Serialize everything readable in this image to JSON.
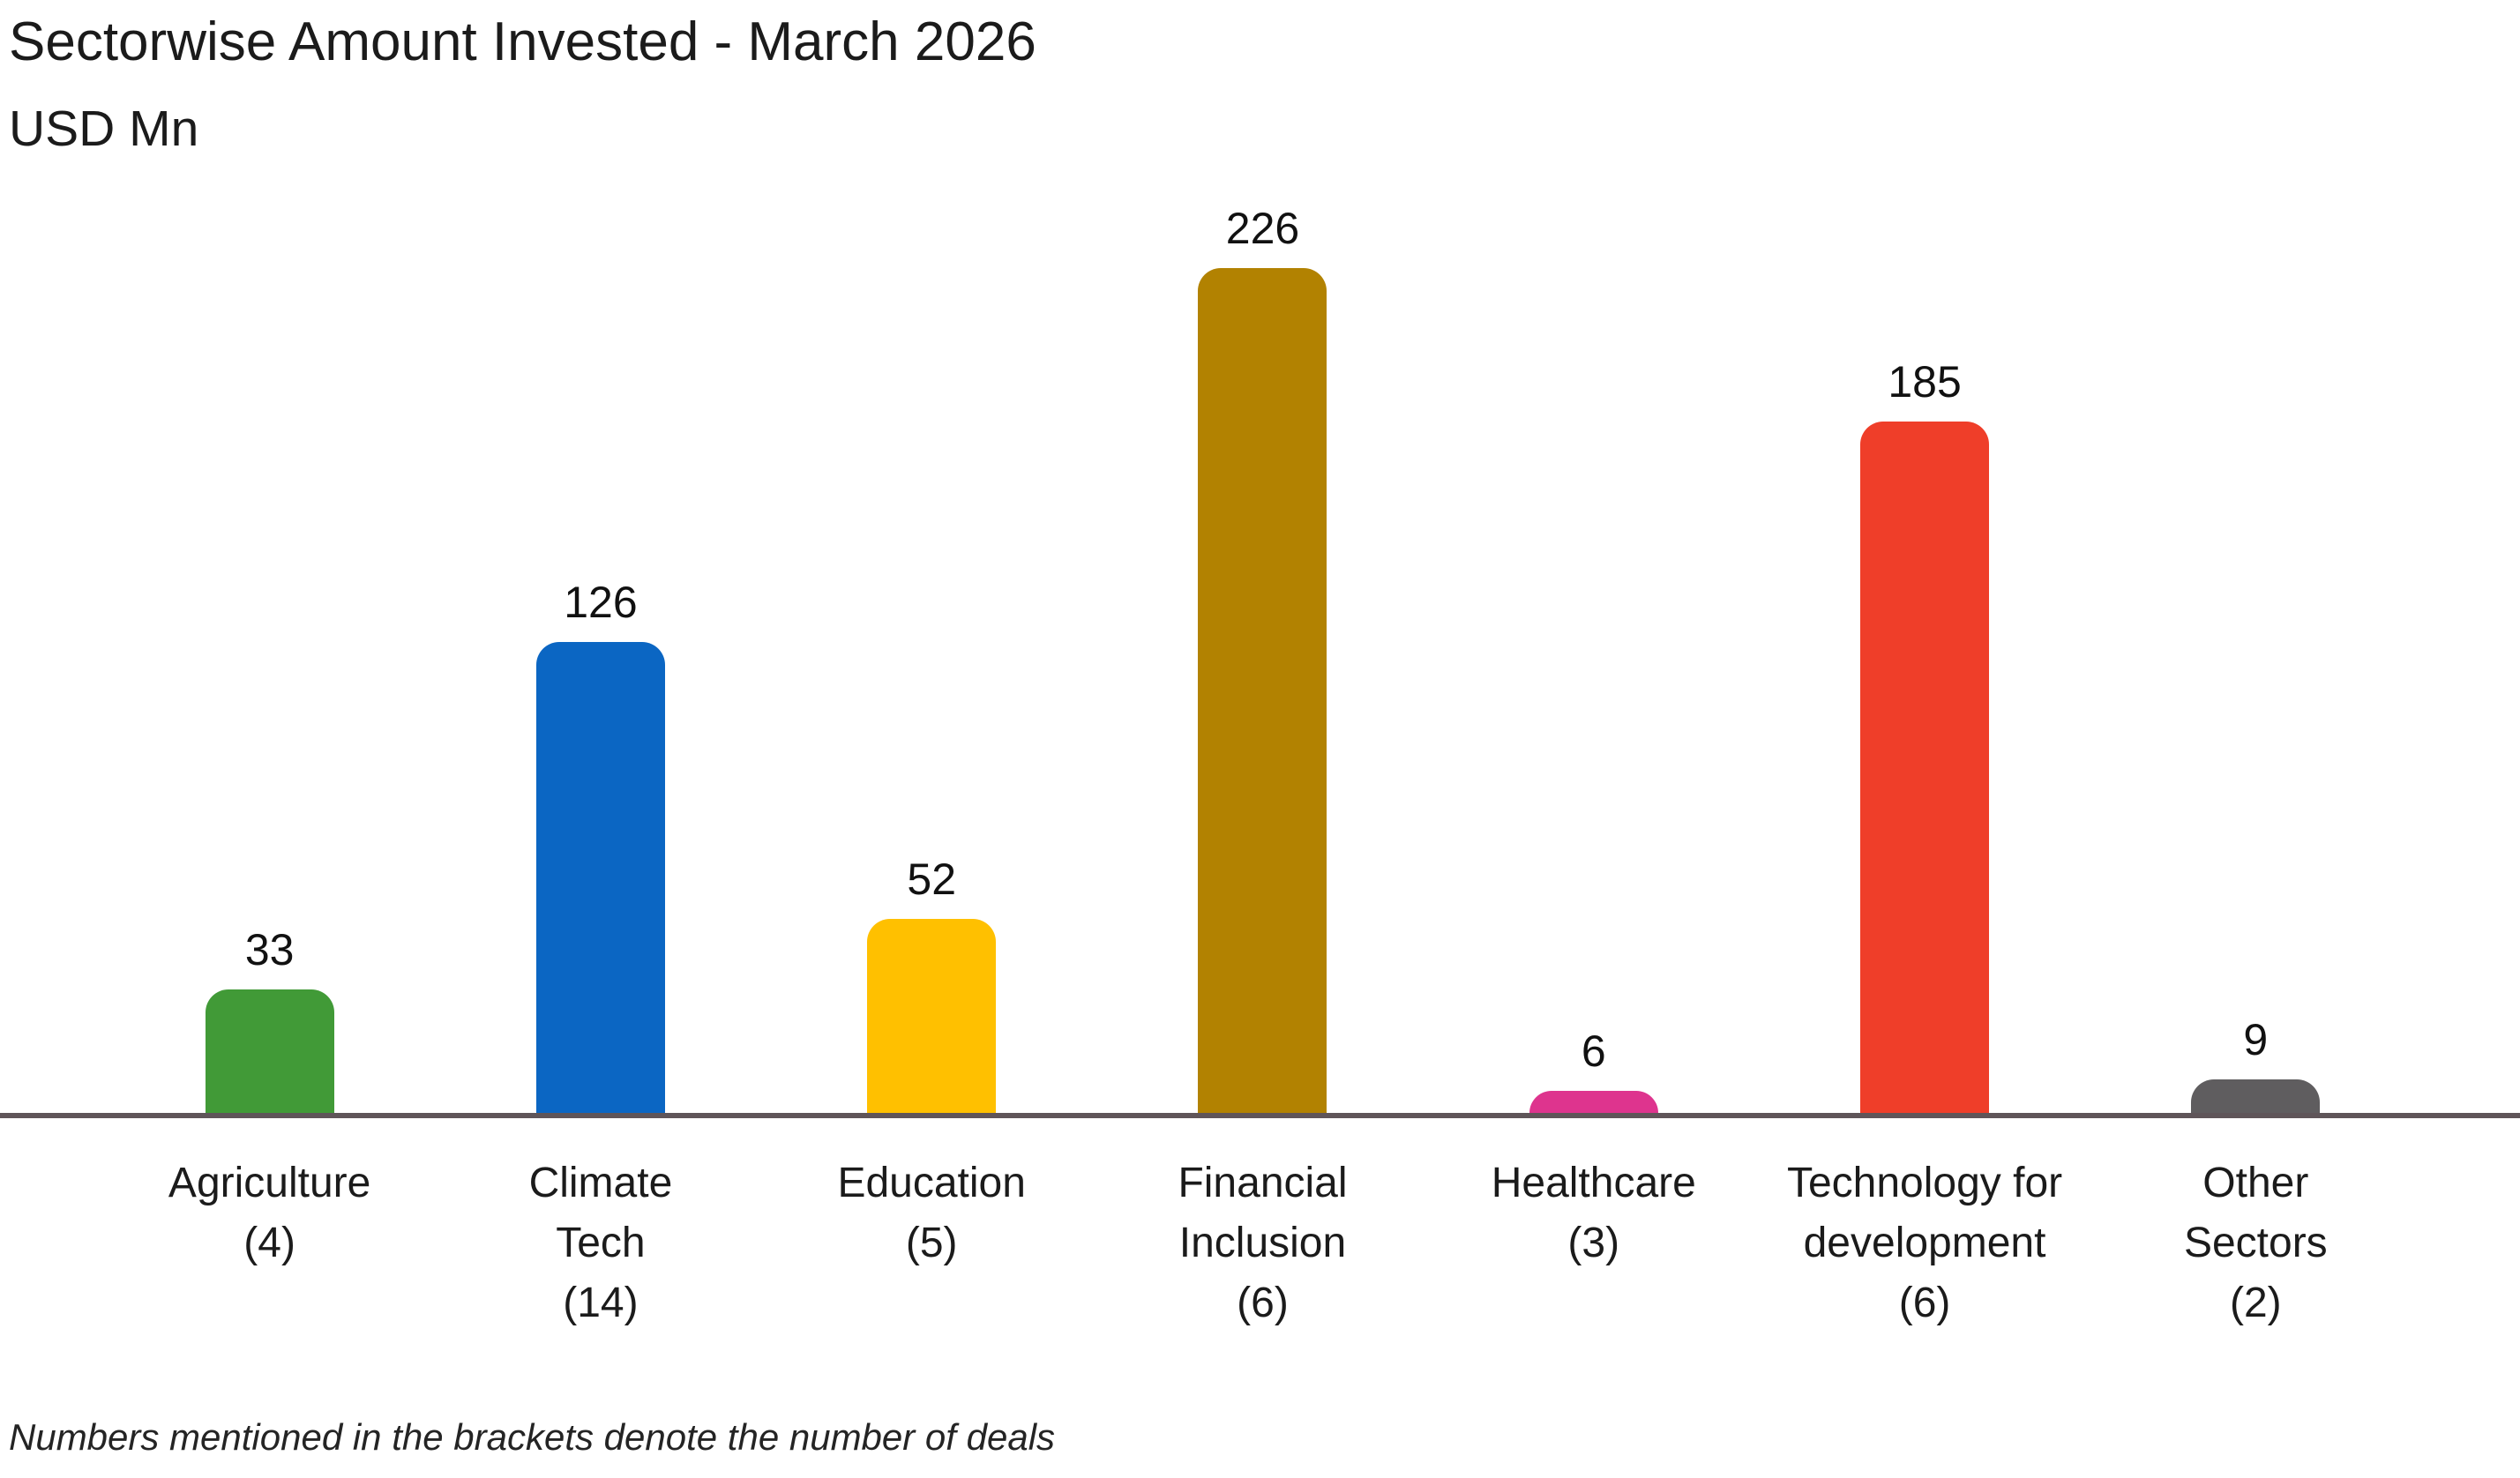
{
  "header": {
    "title": "Sectorwise Amount Invested - March 2026",
    "subtitle": "USD Mn"
  },
  "footnote": "Numbers mentioned in the brackets denote the number of deals",
  "chart_data": {
    "type": "bar",
    "title": "Sectorwise Amount Invested - March 2026",
    "ylabel": "USD Mn",
    "xlabel": "",
    "ylim": [
      0,
      240
    ],
    "grid": false,
    "legend": "none",
    "value_labels_position": "above bars",
    "axis_line_color": "#5F5559",
    "categories": [
      "Agriculture",
      "Climate Tech",
      "Education",
      "Financial Inclusion",
      "Healthcare",
      "Technology for development",
      "Other Sectors"
    ],
    "deal_counts": [
      4,
      14,
      5,
      6,
      3,
      6,
      2
    ],
    "values": [
      33,
      126,
      52,
      226,
      6,
      185,
      9
    ],
    "value_labels": [
      "33",
      "126",
      "52",
      "226",
      "6",
      "185",
      "9"
    ],
    "bar_colors": [
      "#419A37",
      "#0B66C3",
      "#FFC000",
      "#B28201",
      "#DE348E",
      "#EF3E29",
      "#5F5D5F"
    ],
    "category_label_lines": [
      [
        "Agriculture",
        "(4)"
      ],
      [
        "Climate",
        "Tech",
        "(14)"
      ],
      [
        "Education",
        "(5)"
      ],
      [
        "Financial",
        "Inclusion",
        "(6)"
      ],
      [
        "Healthcare",
        "(3)"
      ],
      [
        "Technology for",
        "development",
        "(6)"
      ],
      [
        "Other",
        "Sectors",
        "(2)"
      ]
    ]
  }
}
